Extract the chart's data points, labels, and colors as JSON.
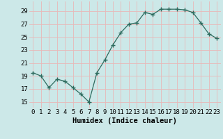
{
  "x": [
    0,
    1,
    2,
    3,
    4,
    5,
    6,
    7,
    8,
    9,
    10,
    11,
    12,
    13,
    14,
    15,
    16,
    17,
    18,
    19,
    20,
    21,
    22,
    23
  ],
  "y": [
    19.5,
    19.0,
    17.2,
    18.5,
    18.2,
    17.2,
    16.2,
    15.0,
    19.5,
    21.5,
    23.8,
    25.7,
    27.0,
    27.2,
    28.8,
    28.5,
    29.3,
    29.3,
    29.3,
    29.2,
    28.8,
    27.2,
    25.5,
    24.8
  ],
  "xlabel": "Humidex (Indice chaleur)",
  "xlim": [
    -0.5,
    23.5
  ],
  "ylim": [
    14.0,
    30.5
  ],
  "yticks": [
    15,
    17,
    19,
    21,
    23,
    25,
    27,
    29
  ],
  "xticks": [
    0,
    1,
    2,
    3,
    4,
    5,
    6,
    7,
    8,
    9,
    10,
    11,
    12,
    13,
    14,
    15,
    16,
    17,
    18,
    19,
    20,
    21,
    22,
    23
  ],
  "line_color": "#2e6b5e",
  "marker": "+",
  "marker_size": 4,
  "bg_color": "#cce8e8",
  "grid_color": "#e8b8b8",
  "font_family": "monospace",
  "xlabel_fontsize": 7.5,
  "tick_fontsize": 6.5,
  "title": ""
}
